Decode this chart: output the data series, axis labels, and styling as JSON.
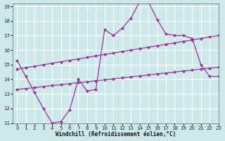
{
  "xlabel": "Windchill (Refroidissement éolien,°C)",
  "bg_color": "#cce8e8",
  "line_color": "#993399",
  "grid_color": "#ffffff",
  "xlim": [
    -0.5,
    23
  ],
  "ylim": [
    11,
    19.2
  ],
  "yticks": [
    11,
    12,
    13,
    14,
    15,
    16,
    17,
    18,
    19
  ],
  "xticks": [
    0,
    1,
    2,
    3,
    4,
    5,
    6,
    7,
    8,
    9,
    10,
    11,
    12,
    13,
    14,
    15,
    16,
    17,
    18,
    19,
    20,
    21,
    22,
    23
  ],
  "series_main_x": [
    0,
    1,
    2,
    3,
    4,
    5,
    6,
    7,
    8,
    9,
    10,
    11,
    12,
    13,
    14,
    15,
    16,
    17,
    18,
    19,
    20,
    21,
    22,
    23
  ],
  "series_main_y": [
    15.3,
    14.2,
    13.1,
    12.0,
    11.0,
    11.1,
    11.9,
    14.0,
    13.2,
    13.3,
    17.4,
    17.0,
    17.5,
    18.2,
    19.3,
    19.3,
    18.1,
    17.1,
    17.0,
    17.0,
    16.8,
    15.0,
    14.2,
    14.2
  ],
  "series_upper_x": [
    0,
    1,
    2,
    3,
    4,
    5,
    6,
    7,
    8,
    9,
    10,
    11,
    12,
    13,
    14,
    15,
    16,
    17,
    18,
    19,
    20,
    21,
    22,
    23
  ],
  "series_upper_y": [
    14.7,
    14.8,
    14.9,
    15.0,
    15.1,
    15.2,
    15.3,
    15.4,
    15.5,
    15.6,
    15.7,
    15.8,
    15.9,
    16.0,
    16.1,
    16.2,
    16.3,
    16.4,
    16.5,
    16.6,
    16.7,
    16.8,
    16.9,
    17.0
  ],
  "series_lower_x": [
    0,
    1,
    2,
    3,
    4,
    5,
    6,
    7,
    8,
    9,
    10,
    11,
    12,
    13,
    14,
    15,
    16,
    17,
    18,
    19,
    20,
    21,
    22,
    23
  ],
  "series_lower_y": [
    13.3,
    13.37,
    13.43,
    13.5,
    13.57,
    13.63,
    13.7,
    13.77,
    13.83,
    13.9,
    13.97,
    14.03,
    14.1,
    14.17,
    14.23,
    14.3,
    14.37,
    14.43,
    14.5,
    14.57,
    14.63,
    14.7,
    14.77,
    14.83
  ]
}
